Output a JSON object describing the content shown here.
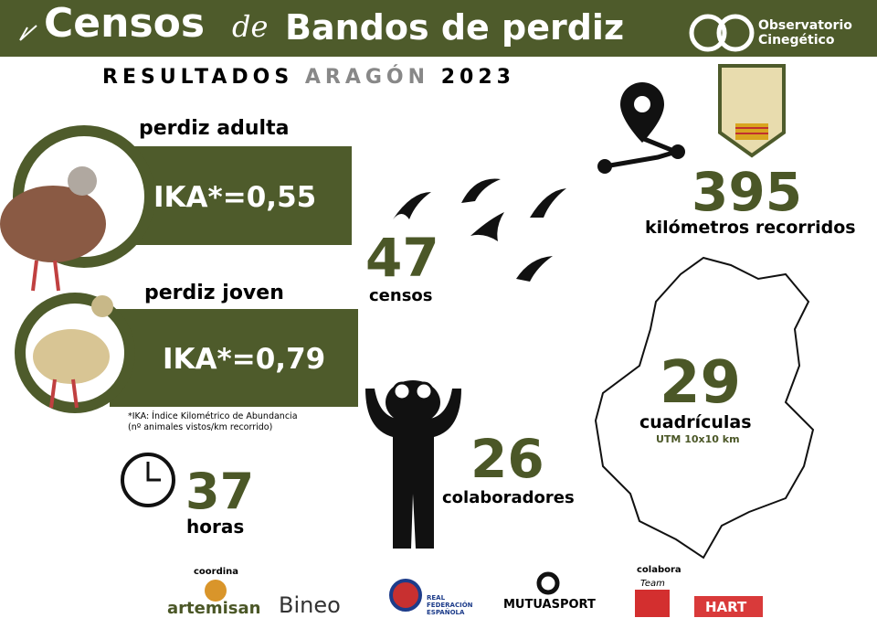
{
  "header": {
    "title_main": "Censos",
    "title_de": "de",
    "title_rest": "Bandos de perdiz",
    "brand_line1": "Observatorio",
    "brand_line2": "Cinegético"
  },
  "subtitle": {
    "word1": "RESULTADOS",
    "word2": "ARAGÓN",
    "word3": "2023"
  },
  "adult": {
    "label": "perdiz adulta",
    "value": "IKA*=0,55"
  },
  "young": {
    "label": "perdiz joven",
    "value": "IKA*=0,79"
  },
  "note": {
    "line1": "*IKA: Índice Kilométrico de Abundancia",
    "line2": "(nº animales vistos/km recorrido)"
  },
  "stats": {
    "censos": {
      "number": "47",
      "label": "censos"
    },
    "km": {
      "number": "395",
      "label": "kilómetros recorridos"
    },
    "cuadriculas": {
      "number": "29",
      "label": "cuadrículas",
      "sub": "UTM 10x10 km"
    },
    "colaboradores": {
      "number": "26",
      "label": "colaboradores"
    },
    "horas": {
      "number": "37",
      "label": "horas"
    }
  },
  "footer": {
    "coordina": "coordina",
    "artemisan": "artemisan",
    "bineo": "Bineo",
    "rfe": "REAL FEDERACIÓN ESPAÑOLA",
    "mutua": "MUTUASPORT",
    "colabora": "colabora",
    "team": "Team",
    "hart": "HART"
  }
}
